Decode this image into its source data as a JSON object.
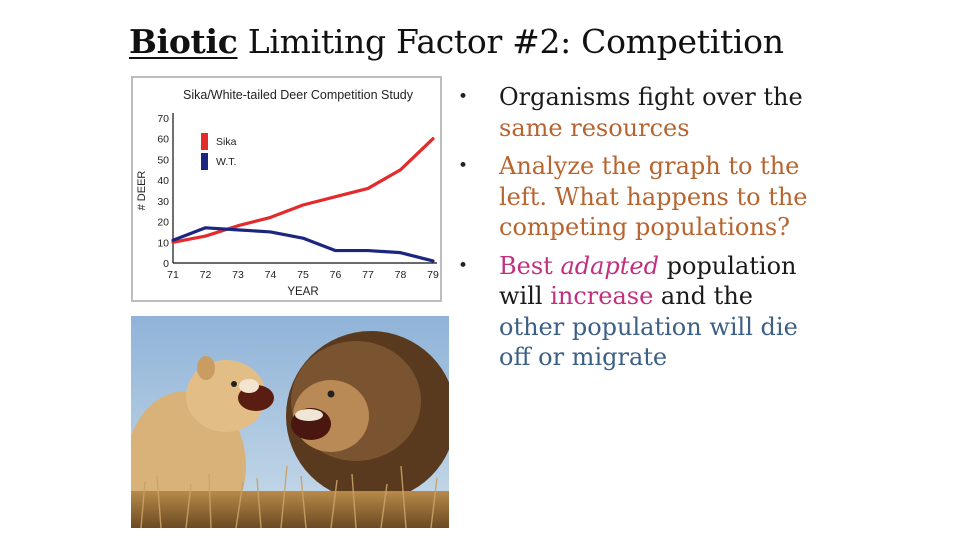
{
  "title": {
    "bold_word": "Biotic",
    "rest": " Limiting Factor #2: Competition"
  },
  "bullets": [
    {
      "line_parts": [
        "Organisms fight over the",
        "same resources"
      ]
    },
    {
      "line_parts": [
        "Analyze the graph to the",
        "left.  What happens to the",
        "competing populations?"
      ]
    },
    {
      "line_parts": [
        "Best ",
        "adapted",
        " population",
        "will ",
        "increase",
        " and the",
        "other population will die",
        "off or migrate"
      ]
    }
  ],
  "colors": {
    "dark": "#1a1a1a",
    "orange": "#b8642f",
    "magenta": "#c0307f",
    "blue": "#3c5f86",
    "sika": "#e32b2b",
    "wt": "#1c2680"
  },
  "photo": {
    "icon": "lions-photo"
  },
  "chart_data": {
    "type": "line",
    "title": "Sika/White-tailed Deer Competition Study",
    "xlabel": "YEAR",
    "ylabel": "# DEER",
    "categories": [
      "71",
      "72",
      "73",
      "74",
      "75",
      "76",
      "77",
      "78",
      "79"
    ],
    "yticks": [
      "0",
      "10",
      "20",
      "30",
      "40",
      "50",
      "60",
      "70"
    ],
    "ylim": [
      0,
      70
    ],
    "legend_placement": "top-left",
    "series": [
      {
        "name": "Sika",
        "color": "#e32b2b",
        "values": [
          10,
          13,
          18,
          22,
          28,
          32,
          36,
          45,
          60
        ]
      },
      {
        "name": "W.T.",
        "color": "#1c2680",
        "values": [
          11,
          17,
          16,
          15,
          12,
          6,
          6,
          5,
          1
        ]
      }
    ]
  }
}
